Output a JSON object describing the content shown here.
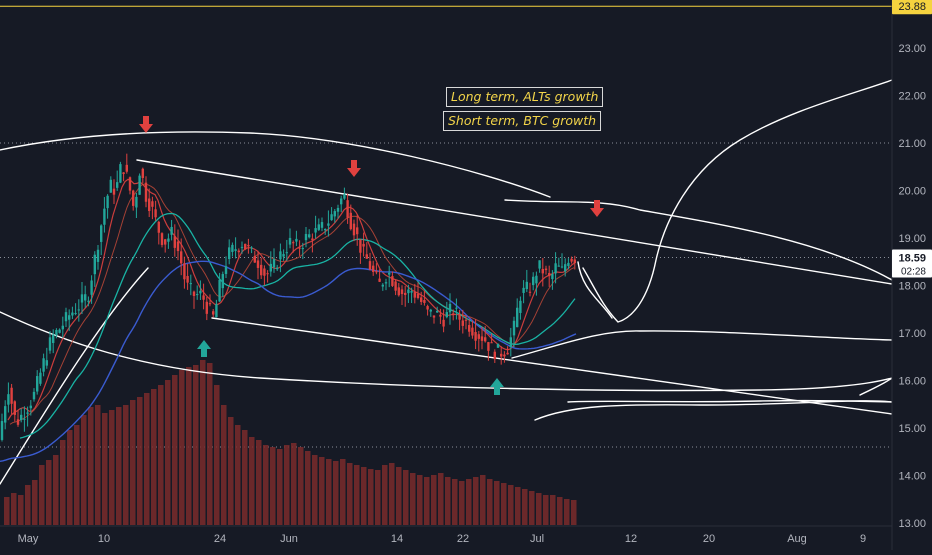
{
  "chart_data": {
    "type": "candlestick",
    "x_axis": {
      "tick_labels": [
        "May",
        "10",
        "24",
        "Jun",
        "14",
        "22",
        "Jul",
        "12",
        "20",
        "Aug",
        "9"
      ]
    },
    "y_axis": {
      "tick_labels": [
        "13.00",
        "14.00",
        "15.00",
        "16.00",
        "17.00",
        "18.00",
        "19.00",
        "20.00",
        "21.00",
        "22.00",
        "23.00"
      ],
      "ylim": [
        13.0,
        24.0
      ]
    },
    "price_badges": [
      {
        "name": "high-level",
        "value": "23.88",
        "color": "#f5d33f",
        "text_color": "#161a25"
      },
      {
        "name": "last-price",
        "value": "18.59",
        "sub": "02:28",
        "color": "#ffffff",
        "text_color": "#161a25"
      }
    ],
    "annotations": [
      {
        "name": "long-term-note",
        "text": "Long term, ALTs growth"
      },
      {
        "name": "short-term-note",
        "text": "Short term, BTC growth"
      }
    ],
    "horizontal_lines": [
      {
        "name": "high-line",
        "value": 23.88,
        "style": "solid",
        "color": "#f5d33f"
      },
      {
        "name": "dotted-line-21",
        "value": 21.0,
        "style": "dotted",
        "color": "#8a8f99"
      },
      {
        "name": "last-price-line",
        "value": 18.59,
        "style": "dotted",
        "color": "#8a8f99"
      },
      {
        "name": "dotted-line-14-6",
        "value": 14.6,
        "style": "dotted",
        "color": "#8a8f99"
      }
    ],
    "price_path": [
      [
        0,
        14.9
      ],
      [
        8,
        15.9
      ],
      [
        16,
        15.1
      ],
      [
        26,
        15.4
      ],
      [
        34,
        15.7
      ],
      [
        44,
        16.4
      ],
      [
        52,
        16.9
      ],
      [
        60,
        17.1
      ],
      [
        70,
        17.4
      ],
      [
        80,
        17.6
      ],
      [
        88,
        17.8
      ],
      [
        96,
        18.7
      ],
      [
        104,
        19.6
      ],
      [
        110,
        20.1
      ],
      [
        116,
        20.0
      ],
      [
        122,
        20.6
      ],
      [
        128,
        20.2
      ],
      [
        134,
        19.6
      ],
      [
        140,
        20.5
      ],
      [
        146,
        19.9
      ],
      [
        152,
        19.6
      ],
      [
        158,
        19.2
      ],
      [
        164,
        18.9
      ],
      [
        172,
        19.1
      ],
      [
        180,
        18.6
      ],
      [
        186,
        18.0
      ],
      [
        194,
        17.8
      ],
      [
        202,
        17.8
      ],
      [
        208,
        17.5
      ],
      [
        214,
        17.3
      ],
      [
        218,
        17.8
      ],
      [
        224,
        18.4
      ],
      [
        230,
        18.7
      ],
      [
        236,
        18.8
      ],
      [
        242,
        18.9
      ],
      [
        250,
        18.7
      ],
      [
        258,
        18.5
      ],
      [
        266,
        18.2
      ],
      [
        274,
        18.4
      ],
      [
        282,
        18.7
      ],
      [
        290,
        18.9
      ],
      [
        298,
        18.8
      ],
      [
        306,
        19.0
      ],
      [
        314,
        19.1
      ],
      [
        322,
        19.2
      ],
      [
        330,
        19.4
      ],
      [
        338,
        19.7
      ],
      [
        344,
        19.9
      ],
      [
        350,
        19.4
      ],
      [
        356,
        19.1
      ],
      [
        362,
        18.7
      ],
      [
        368,
        18.5
      ],
      [
        374,
        18.2
      ],
      [
        380,
        18.0
      ],
      [
        388,
        18.3
      ],
      [
        396,
        18.0
      ],
      [
        404,
        17.8
      ],
      [
        412,
        17.9
      ],
      [
        420,
        17.7
      ],
      [
        428,
        17.4
      ],
      [
        436,
        17.4
      ],
      [
        444,
        17.3
      ],
      [
        452,
        17.5
      ],
      [
        460,
        17.3
      ],
      [
        468,
        17.2
      ],
      [
        476,
        17.0
      ],
      [
        484,
        16.9
      ],
      [
        490,
        16.7
      ],
      [
        496,
        16.6
      ],
      [
        502,
        16.6
      ],
      [
        508,
        16.7
      ],
      [
        514,
        17.1
      ],
      [
        520,
        17.8
      ],
      [
        526,
        17.9
      ],
      [
        532,
        18.0
      ],
      [
        538,
        18.4
      ],
      [
        544,
        18.3
      ],
      [
        550,
        18.1
      ],
      [
        556,
        18.4
      ],
      [
        562,
        18.3
      ],
      [
        568,
        18.6
      ],
      [
        574,
        18.59
      ]
    ],
    "volume_heights": [
      28,
      32,
      30,
      40,
      45,
      60,
      65,
      70,
      85,
      95,
      100,
      110,
      118,
      120,
      112,
      115,
      118,
      120,
      125,
      128,
      132,
      136,
      140,
      145,
      150,
      155,
      158,
      160,
      165,
      162,
      140,
      120,
      108,
      100,
      95,
      88,
      85,
      80,
      78,
      76,
      80,
      82,
      78,
      74,
      70,
      68,
      66,
      64,
      66,
      62,
      60,
      58,
      56,
      55,
      60,
      62,
      58,
      55,
      52,
      50,
      48,
      50,
      52,
      48,
      46,
      44,
      46,
      48,
      50,
      46,
      44,
      42,
      40,
      38,
      36,
      34,
      32,
      30,
      30,
      28,
      26,
      25
    ],
    "arrows": [
      {
        "name": "down-arrow-top",
        "direction": "down",
        "color": "#e0413f"
      },
      {
        "name": "down-arrow-mid",
        "direction": "down",
        "color": "#e0413f"
      },
      {
        "name": "down-arrow-right",
        "direction": "down",
        "color": "#e0413f"
      },
      {
        "name": "up-arrow-left",
        "direction": "up",
        "color": "#22a69a"
      },
      {
        "name": "up-arrow-right",
        "direction": "up",
        "color": "#22a69a"
      }
    ],
    "colors": {
      "background": "#161a25",
      "candle_up": "#22a69a",
      "candle_down": "#e0413f",
      "volume": "#7a2c2c",
      "ma_fast": "#e0413f",
      "ma_slow": "#3a5bd0",
      "ma_teal": "#19b3a4",
      "drawing": "#ffffff",
      "axis_text": "#b2b5be",
      "note_text": "#f3d54a"
    },
    "grid": false
  }
}
